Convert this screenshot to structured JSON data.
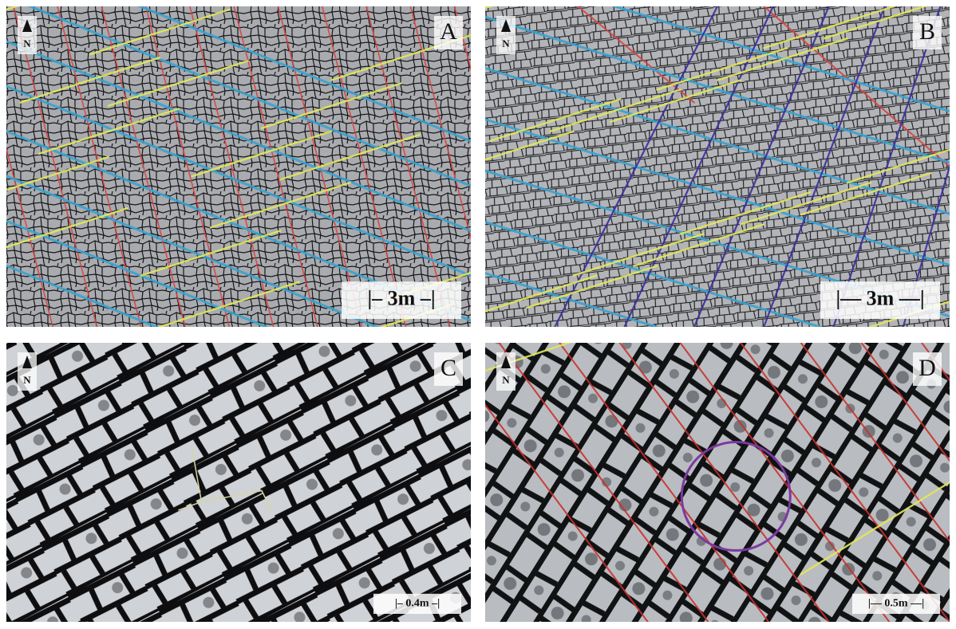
{
  "panels": [
    {
      "label": "A",
      "north": "N",
      "scale": "|– 3m –|"
    },
    {
      "label": "B",
      "north": "N",
      "scale": "|— 3m —|"
    },
    {
      "label": "C",
      "north": "N",
      "scale": "|– 0.4m –|"
    },
    {
      "label": "D",
      "north": "N",
      "scale": "|— 0.5m —|"
    }
  ]
}
